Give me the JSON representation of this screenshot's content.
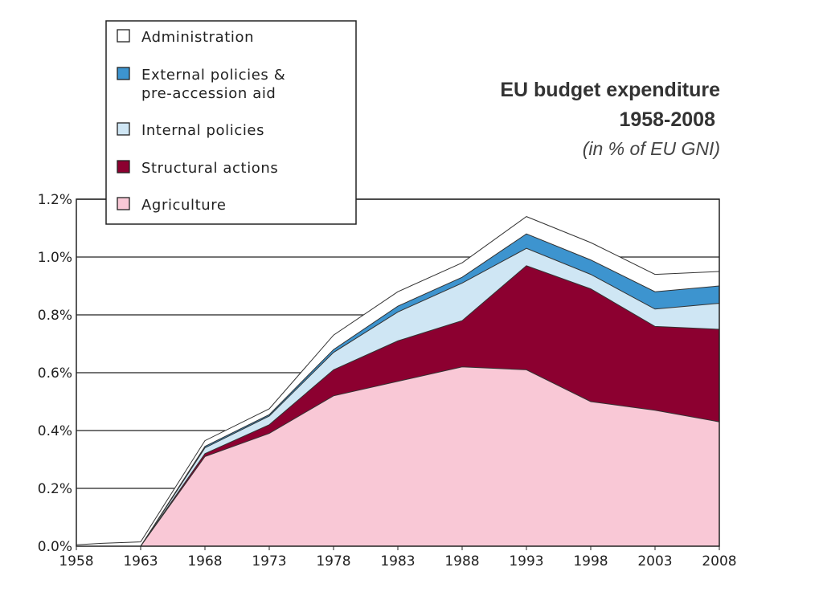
{
  "chart_data": {
    "type": "area",
    "stacked": true,
    "title": "EU budget expenditure",
    "title_line2": "1958-2008",
    "subtitle": "(in % of EU GNI)",
    "xlabel": "",
    "ylabel": "",
    "x": [
      1958,
      1960,
      1963,
      1968,
      1973,
      1978,
      1983,
      1988,
      1993,
      1998,
      2003,
      2008
    ],
    "x_ticks": [
      "1958",
      "1963",
      "1968",
      "1973",
      "1978",
      "1983",
      "1988",
      "1993",
      "1998",
      "2003",
      "2008"
    ],
    "x_tick_values": [
      1958,
      1963,
      1968,
      1973,
      1978,
      1983,
      1988,
      1993,
      1998,
      2003,
      2008
    ],
    "xlim": [
      1958,
      2008
    ],
    "ylim": [
      0,
      1.2
    ],
    "y_ticks": [
      "0.0%",
      "0.2%",
      "0.4%",
      "0.6%",
      "0.8%",
      "1.0%",
      "1.2%"
    ],
    "y_tick_values": [
      0,
      0.2,
      0.4,
      0.6,
      0.8,
      1.0,
      1.2
    ],
    "grid": "horizontal",
    "legend_position": "top-left",
    "series": [
      {
        "name": "Agriculture",
        "color": "#f9c8d6",
        "values": [
          0.0,
          0.0,
          0.0,
          0.31,
          0.39,
          0.52,
          0.57,
          0.62,
          0.61,
          0.5,
          0.47,
          0.43
        ]
      },
      {
        "name": "Structural actions",
        "color": "#8c0030",
        "values": [
          0.0,
          0.0,
          0.0,
          0.01,
          0.03,
          0.09,
          0.14,
          0.16,
          0.36,
          0.39,
          0.29,
          0.32
        ]
      },
      {
        "name": "Internal policies",
        "color": "#cfe6f4",
        "values": [
          0.0,
          0.0,
          0.0,
          0.02,
          0.03,
          0.06,
          0.1,
          0.13,
          0.06,
          0.05,
          0.06,
          0.09
        ]
      },
      {
        "name": "External policies & pre-accession aid",
        "legend_lines": [
          "External policies &",
          "pre-accession aid"
        ],
        "color": "#3d94cf",
        "values": [
          0.0,
          0.0,
          0.0,
          0.005,
          0.005,
          0.01,
          0.02,
          0.02,
          0.05,
          0.05,
          0.06,
          0.06
        ]
      },
      {
        "name": "Administration",
        "color": "#ffffff",
        "values": [
          0.005,
          0.01,
          0.015,
          0.02,
          0.02,
          0.05,
          0.05,
          0.05,
          0.06,
          0.06,
          0.06,
          0.05
        ]
      }
    ],
    "legend_order": [
      "Administration",
      "External policies & pre-accession aid",
      "Internal policies",
      "Structural actions",
      "Agriculture"
    ]
  }
}
